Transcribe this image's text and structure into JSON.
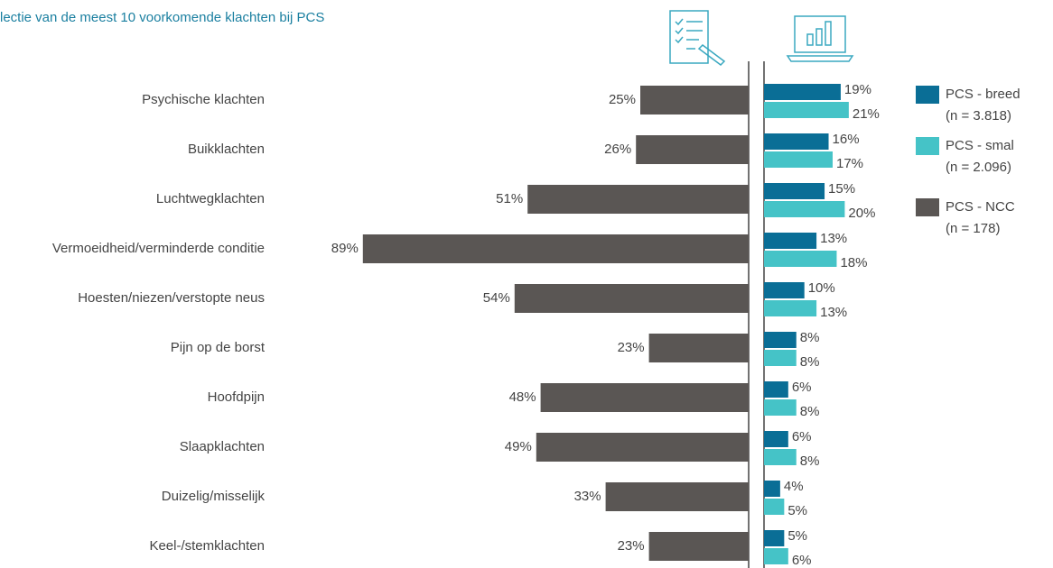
{
  "chart_data": {
    "type": "butterfly-bar",
    "title": "lectie van de meest 10 voorkomende klachten bij PCS",
    "categories": [
      "Psychische klachten",
      "Buikklachten",
      "Luchtwegklachten",
      "Vermoeidheid/verminderde  conditie",
      "Hoesten/niezen/verstopte neus",
      "Pijn op de borst",
      "Hoofdpijn",
      "Slaapklachten",
      "Duizelig/misselijk",
      "Keel-/stemklachten"
    ],
    "series": [
      {
        "name": "PCS - breed",
        "sample": "(n = 3.818)",
        "color": "#0a6e96",
        "side": "right",
        "values": [
          19,
          16,
          15,
          13,
          10,
          8,
          6,
          6,
          4,
          5
        ],
        "value_labels": [
          "19%",
          "16%",
          "15%",
          "13%",
          "10%",
          "8%",
          "6%",
          "6%",
          "4%",
          "5%"
        ]
      },
      {
        "name": "PCS - smal",
        "sample": "(n = 2.096)",
        "color": "#45c3c7",
        "side": "right",
        "values": [
          21,
          17,
          20,
          18,
          13,
          8,
          8,
          8,
          5,
          6
        ],
        "value_labels": [
          "21%",
          "17%",
          "20%",
          "18%",
          "13%",
          "8%",
          "8%",
          "8%",
          "5%",
          "6%"
        ]
      },
      {
        "name": "PCS - NCC",
        "sample": "(n = 178)",
        "color": "#5a5654",
        "side": "left",
        "values": [
          25,
          26,
          51,
          89,
          54,
          23,
          48,
          49,
          33,
          23
        ],
        "value_labels": [
          "25%",
          "26%",
          "51%",
          "89%",
          "54%",
          "23%",
          "48%",
          "49%",
          "33%",
          "23%"
        ]
      }
    ]
  }
}
